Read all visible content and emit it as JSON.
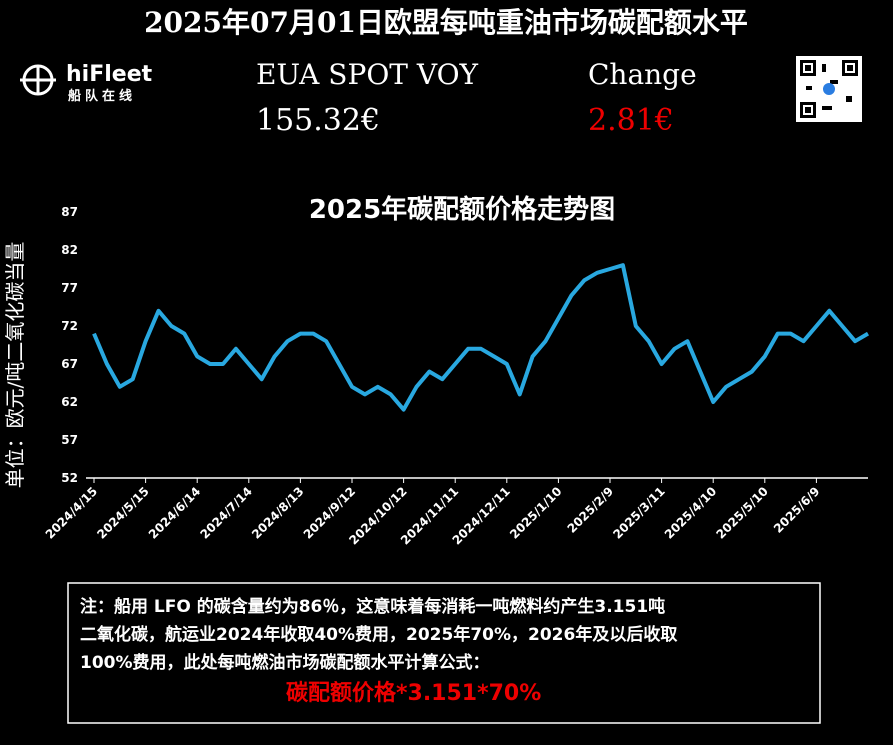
{
  "header": {
    "title": "2025年07月01日欧盟每吨重油市场碳配额水平",
    "logo": "hiFleet",
    "logo_sub": "船队在线",
    "spot_label": "EUA SPOT VOY",
    "spot_value": "155.32€",
    "change_label": "Change",
    "change_value": "2.81€"
  },
  "chart_data": {
    "type": "line",
    "title": "2025年碳配额价格走势图",
    "ylabel": "单位：欧元/吨二氧化碳当量",
    "categories": [
      "2024/4/15",
      null,
      null,
      null,
      "2024/5/15",
      null,
      null,
      null,
      "2024/6/14",
      null,
      null,
      null,
      "2024/7/14",
      null,
      null,
      null,
      "2024/8/13",
      null,
      null,
      null,
      "2024/9/12",
      null,
      null,
      null,
      "2024/10/12",
      null,
      null,
      null,
      "2024/11/11",
      null,
      null,
      null,
      "2024/12/11",
      null,
      null,
      null,
      "2025/1/10",
      null,
      null,
      null,
      "2025/2/9",
      null,
      null,
      null,
      "2025/3/11",
      null,
      null,
      null,
      "2025/4/10",
      null,
      null,
      null,
      "2025/5/10",
      null,
      null,
      null,
      "2025/6/9",
      null,
      null,
      null,
      null
    ],
    "values": [
      71,
      67,
      64,
      65,
      70,
      74,
      72,
      71,
      68,
      67,
      67,
      69,
      67,
      65,
      68,
      70,
      71,
      71,
      70,
      67,
      64,
      63,
      64,
      63,
      61,
      64,
      66,
      65,
      67,
      69,
      69,
      68,
      67,
      63,
      68,
      70,
      73,
      76,
      78,
      79,
      79.5,
      80,
      72,
      70,
      67,
      69,
      70,
      66,
      62,
      64,
      65,
      66,
      68,
      71,
      71,
      70,
      72,
      74,
      72,
      70,
      71
    ],
    "color": "#29a8e0",
    "ylim": [
      52,
      87
    ],
    "yticks": [
      52,
      57,
      62,
      67,
      72,
      77,
      82,
      87
    ],
    "grid": false
  },
  "note": {
    "lines": [
      "注：船用 LFO 的碳含量约为86％，这意味着每消耗一吨燃料约产生3.151吨",
      "二氧化碳，航运业2024年收取40%费用，2025年70%，2026年及以后收取",
      "100%费用，此处每吨燃油市场碳配额水平计算公式："
    ],
    "formula": "碳配额价格*3.151*70%"
  }
}
